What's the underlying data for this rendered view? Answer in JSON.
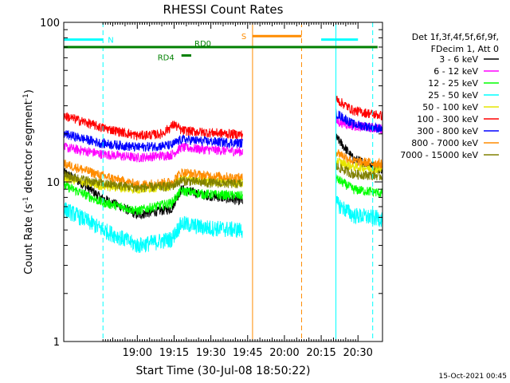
{
  "chart_data": {
    "type": "line",
    "title": "RHESSI Count Rates",
    "xlabel": "Start Time (30-Jul-08 18:50:22)",
    "ylabel_main": "Count Rate (s",
    "ylabel_sup": "-1",
    "ylabel_tail": " detector segment",
    "ylabel_sup2": "-1",
    "ylabel_close": ")",
    "ylog": true,
    "ylim": [
      1,
      100
    ],
    "xlim_minutes": [
      18.0,
      100.0
    ],
    "x_ticks": [
      {
        "label": "19:00",
        "minute": 30
      },
      {
        "label": "19:15",
        "minute": 45
      },
      {
        "label": "19:30",
        "minute": 60
      },
      {
        "label": "19:45",
        "minute": 75
      },
      {
        "label": "20:00",
        "minute": 90
      },
      {
        "label": "20:15",
        "minute": 105
      },
      {
        "label": "20:30",
        "minute": 120
      }
    ],
    "y_ticks": [
      {
        "label": "1",
        "value": 1
      },
      {
        "label": "10",
        "value": 10
      },
      {
        "label": "100",
        "value": 100
      }
    ],
    "legend_header": [
      "Det 1f,3f,4f,5f,6f,9f,",
      "FDecim 1, Att 0"
    ],
    "legend_placement": "right",
    "series": [
      {
        "name": "3 - 6 keV",
        "color": "#000000",
        "segments": [
          [
            [
              0,
              11.5
            ],
            [
              15,
              8.0
            ],
            [
              30,
              6.2
            ],
            [
              44,
              6.8
            ],
            [
              48,
              9.0
            ],
            [
              57,
              8.3
            ],
            [
              73,
              7.6
            ]
          ],
          [
            [
              111,
              19.0
            ],
            [
              118,
              14.0
            ],
            [
              130,
              12.0
            ],
            [
              145,
              13.0
            ]
          ]
        ]
      },
      {
        "name": "6 - 12 keV",
        "color": "#ff00ff",
        "segments": [
          [
            [
              0,
              16.5
            ],
            [
              15,
              15.0
            ],
            [
              30,
              14.2
            ],
            [
              44,
              14.8
            ],
            [
              48,
              16.5
            ],
            [
              57,
              16.0
            ],
            [
              73,
              15.5
            ]
          ],
          [
            [
              111,
              24.0
            ],
            [
              118,
              22.5
            ],
            [
              130,
              21.5
            ],
            [
              145,
              22.5
            ]
          ]
        ]
      },
      {
        "name": "12 - 25 keV",
        "color": "#00ff00",
        "segments": [
          [
            [
              0,
              9.5
            ],
            [
              15,
              7.5
            ],
            [
              30,
              6.6
            ],
            [
              44,
              7.4
            ],
            [
              48,
              8.8
            ],
            [
              57,
              8.4
            ],
            [
              73,
              8.2
            ]
          ],
          [
            [
              111,
              10.5
            ],
            [
              118,
              9.0
            ],
            [
              130,
              8.5
            ],
            [
              145,
              8.8
            ]
          ]
        ]
      },
      {
        "name": "25 - 50 keV",
        "color": "#00ffff",
        "segments": [
          [
            [
              0,
              6.8
            ],
            [
              15,
              5.1
            ],
            [
              30,
              4.0
            ],
            [
              44,
              4.4
            ],
            [
              48,
              5.5
            ],
            [
              57,
              5.2
            ],
            [
              73,
              5.0
            ]
          ],
          [
            [
              111,
              7.4
            ],
            [
              118,
              6.2
            ],
            [
              130,
              5.9
            ],
            [
              145,
              6.3
            ]
          ]
        ]
      },
      {
        "name": "50 - 100 keV",
        "color": "#e6e600",
        "segments": [
          [
            [
              0,
              10.6
            ],
            [
              15,
              9.5
            ],
            [
              30,
              9.0
            ],
            [
              44,
              9.5
            ],
            [
              48,
              10.6
            ],
            [
              57,
              10.2
            ],
            [
              73,
              9.8
            ]
          ],
          [
            [
              111,
              13.5
            ],
            [
              118,
              12.5
            ],
            [
              130,
              12.0
            ],
            [
              145,
              12.6
            ]
          ]
        ]
      },
      {
        "name": "100 - 300 keV",
        "color": "#ff0000",
        "segments": [
          [
            [
              0,
              26.0
            ],
            [
              15,
              22.0
            ],
            [
              30,
              19.5
            ],
            [
              40,
              20.0
            ],
            [
              45,
              23.0
            ],
            [
              48,
              21.0
            ],
            [
              57,
              20.5
            ],
            [
              73,
              19.8
            ]
          ],
          [
            [
              111,
              33.0
            ],
            [
              118,
              28.0
            ],
            [
              130,
              26.0
            ],
            [
              145,
              27.0
            ]
          ]
        ]
      },
      {
        "name": "300 - 800 keV",
        "color": "#0000ff",
        "segments": [
          [
            [
              0,
              20.0
            ],
            [
              15,
              17.5
            ],
            [
              30,
              16.5
            ],
            [
              44,
              17.0
            ],
            [
              48,
              18.5
            ],
            [
              57,
              18.0
            ],
            [
              73,
              17.5
            ]
          ],
          [
            [
              111,
              27.0
            ],
            [
              118,
              23.0
            ],
            [
              130,
              21.5
            ],
            [
              145,
              22.0
            ]
          ]
        ]
      },
      {
        "name": "800 - 7000 keV",
        "color": "#ff8c00",
        "segments": [
          [
            [
              0,
              13.0
            ],
            [
              15,
              11.0
            ],
            [
              30,
              9.6
            ],
            [
              44,
              10.0
            ],
            [
              48,
              11.5
            ],
            [
              57,
              11.0
            ],
            [
              73,
              10.6
            ]
          ],
          [
            [
              111,
              15.5
            ],
            [
              118,
              13.5
            ],
            [
              130,
              13.0
            ],
            [
              145,
              13.5
            ]
          ]
        ]
      },
      {
        "name": "7000 - 15000 keV",
        "color": "#808000",
        "segments": [
          [
            [
              0,
              11.0
            ],
            [
              15,
              9.8
            ],
            [
              30,
              9.2
            ],
            [
              44,
              9.4
            ],
            [
              48,
              10.2
            ],
            [
              57,
              9.9
            ],
            [
              73,
              9.7
            ]
          ],
          [
            [
              111,
              12.5
            ],
            [
              118,
              11.2
            ],
            [
              130,
              10.9
            ],
            [
              145,
              11.3
            ]
          ]
        ]
      }
    ],
    "annotations": {
      "bars": [
        {
          "label": "N",
          "color": "#00ffff",
          "y": 78,
          "x_minutes": [
            [
              0,
              16
            ],
            [
              105,
              120
            ]
          ]
        },
        {
          "label": "S",
          "color": "#ff8c00",
          "y": 82,
          "x_minutes": [
            [
              77,
              97
            ]
          ]
        },
        {
          "label": "RD0",
          "color": "#008000",
          "y": 70,
          "x_minutes": [
            [
              0,
              128
            ]
          ]
        },
        {
          "label": "RD4",
          "color": "#008000",
          "y": 62,
          "x_minutes": [
            [
              48,
              52
            ]
          ]
        }
      ],
      "vlines": [
        {
          "minute": 0,
          "color": "#00ffff",
          "style": "solid"
        },
        {
          "minute": 16,
          "color": "#00ffff",
          "style": "dashed"
        },
        {
          "minute": 77,
          "color": "#ff8c00",
          "style": "solid"
        },
        {
          "minute": 97,
          "color": "#ff8c00",
          "style": "dashed"
        },
        {
          "minute": 111,
          "color": "#00ffff",
          "style": "solid"
        },
        {
          "minute": 126,
          "color": "#00ffff",
          "style": "dashed"
        }
      ]
    },
    "footer_date": "15-Oct-2021 00:45"
  }
}
